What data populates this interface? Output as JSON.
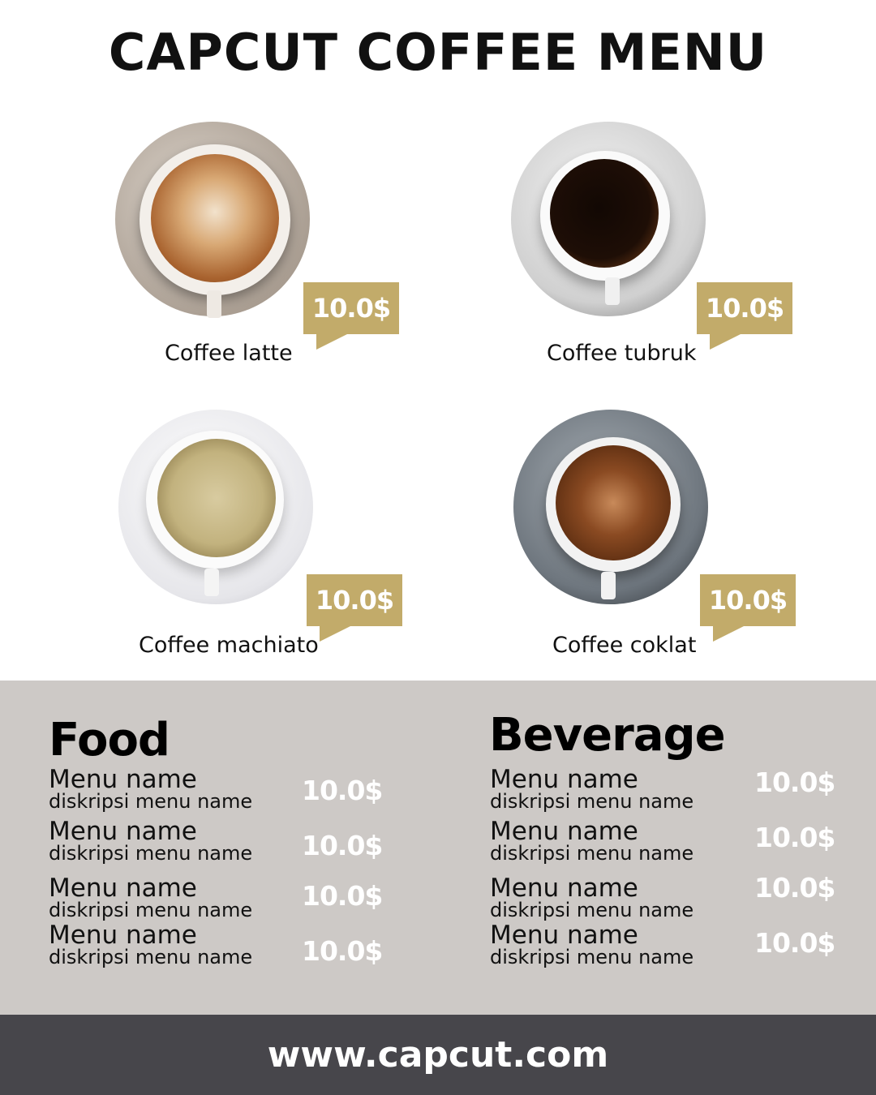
{
  "title": "CAPCUT COFFEE MENU",
  "colors": {
    "accent": "#c2ab6a",
    "panel": "#cdc9c6",
    "footer": "#47464b"
  },
  "featured": [
    {
      "name": "Coffee latte",
      "price": "10.0$"
    },
    {
      "name": "Coffee tubruk",
      "price": "10.0$"
    },
    {
      "name": "Coffee machiato",
      "price": "10.0$"
    },
    {
      "name": "Coffee coklat",
      "price": "10.0$"
    }
  ],
  "food": {
    "heading": "Food",
    "items": [
      {
        "name": "Menu name",
        "desc": "diskripsi menu name",
        "price": "10.0$"
      },
      {
        "name": "Menu name",
        "desc": "diskripsi menu name",
        "price": "10.0$"
      },
      {
        "name": "Menu name",
        "desc": "diskripsi menu name",
        "price": "10.0$"
      },
      {
        "name": "Menu name",
        "desc": "diskripsi menu name",
        "price": "10.0$"
      }
    ]
  },
  "beverage": {
    "heading": "Beverage",
    "items": [
      {
        "name": "Menu name",
        "desc": "diskripsi menu name",
        "price": "10.0$"
      },
      {
        "name": "Menu name",
        "desc": "diskripsi menu name",
        "price": "10.0$"
      },
      {
        "name": "Menu name",
        "desc": "diskripsi menu name",
        "price": "10.0$"
      },
      {
        "name": "Menu name",
        "desc": "diskripsi menu name",
        "price": "10.0$"
      }
    ]
  },
  "footer": {
    "url": "www.capcut.com"
  }
}
